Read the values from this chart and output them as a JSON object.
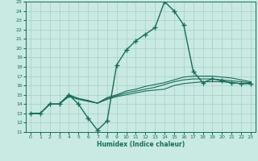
{
  "title": "",
  "xlabel": "Humidex (Indice chaleur)",
  "bg_color": "#c8eae2",
  "grid_color": "#a8cec8",
  "line_color": "#1a6b5a",
  "xlim": [
    -0.5,
    23.5
  ],
  "ylim": [
    11,
    25
  ],
  "xticks": [
    0,
    1,
    2,
    3,
    4,
    5,
    6,
    7,
    8,
    9,
    10,
    11,
    12,
    13,
    14,
    15,
    16,
    17,
    18,
    19,
    20,
    21,
    22,
    23
  ],
  "yticks": [
    11,
    12,
    13,
    14,
    15,
    16,
    17,
    18,
    19,
    20,
    21,
    22,
    23,
    24,
    25
  ],
  "lines": [
    {
      "x": [
        0,
        1,
        2,
        3,
        4,
        5,
        6,
        7,
        8,
        9,
        10,
        11,
        12,
        13,
        14,
        15,
        16,
        17,
        18,
        19,
        20,
        21,
        22,
        23
      ],
      "y": [
        13,
        13,
        14,
        14,
        15,
        14,
        12.5,
        11.2,
        12.2,
        18.2,
        19.8,
        20.8,
        21.5,
        22.2,
        25,
        24,
        22.5,
        17.5,
        16.3,
        16.7,
        16.5,
        16.3,
        16.2,
        16.2
      ],
      "marker": "+",
      "markersize": 4,
      "linewidth": 1.0,
      "zorder": 3
    },
    {
      "x": [
        0,
        1,
        2,
        3,
        4,
        5,
        6,
        7,
        8,
        9,
        10,
        11,
        12,
        13,
        14,
        15,
        16,
        17,
        18,
        19,
        20,
        21,
        22,
        23
      ],
      "y": [
        13,
        13,
        14,
        14,
        14.8,
        14.5,
        14.3,
        14.1,
        14.5,
        14.8,
        15.0,
        15.2,
        15.4,
        15.5,
        15.6,
        16.0,
        16.2,
        16.3,
        16.4,
        16.4,
        16.4,
        16.3,
        16.2,
        16.2
      ],
      "marker": null,
      "markersize": 0,
      "linewidth": 0.8,
      "zorder": 2
    },
    {
      "x": [
        0,
        1,
        2,
        3,
        4,
        5,
        6,
        7,
        8,
        9,
        10,
        11,
        12,
        13,
        14,
        15,
        16,
        17,
        18,
        19,
        20,
        21,
        22,
        23
      ],
      "y": [
        13,
        13,
        14,
        14,
        14.9,
        14.6,
        14.3,
        14.1,
        14.6,
        14.9,
        15.2,
        15.4,
        15.6,
        15.8,
        16.1,
        16.4,
        16.6,
        16.7,
        16.7,
        16.7,
        16.6,
        16.5,
        16.4,
        16.3
      ],
      "marker": null,
      "markersize": 0,
      "linewidth": 0.8,
      "zorder": 2
    },
    {
      "x": [
        0,
        1,
        2,
        3,
        4,
        5,
        6,
        7,
        8,
        9,
        10,
        11,
        12,
        13,
        14,
        15,
        16,
        17,
        18,
        19,
        20,
        21,
        22,
        23
      ],
      "y": [
        13,
        13,
        14,
        14,
        15.0,
        14.6,
        14.4,
        14.1,
        14.7,
        15.0,
        15.4,
        15.6,
        15.9,
        16.1,
        16.3,
        16.6,
        16.9,
        17.0,
        17.0,
        17.0,
        16.9,
        16.8,
        16.6,
        16.4
      ],
      "marker": null,
      "markersize": 0,
      "linewidth": 0.8,
      "zorder": 2
    }
  ]
}
